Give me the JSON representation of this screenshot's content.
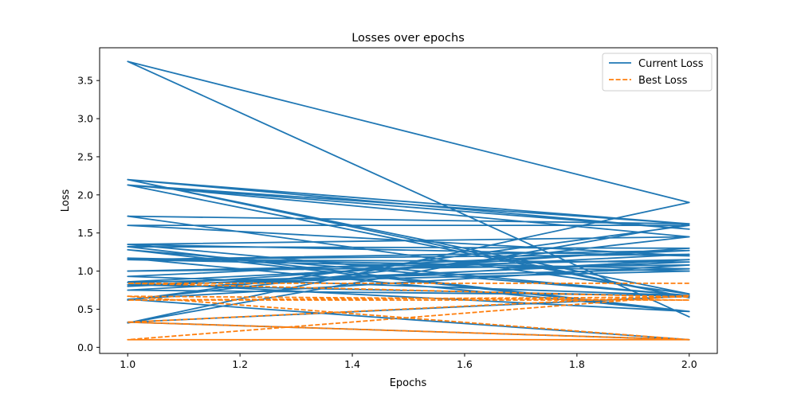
{
  "chart_data": {
    "type": "line",
    "title": "Losses over epochs",
    "xlabel": "Epochs",
    "ylabel": "Loss",
    "xlim": [
      0.95,
      2.05
    ],
    "ylim": [
      -0.08,
      3.93
    ],
    "x_ticks": [
      1.0,
      1.2,
      1.4,
      1.6,
      1.8,
      2.0
    ],
    "x_tick_labels": [
      "1.0",
      "1.2",
      "1.4",
      "1.6",
      "1.8",
      "2.0"
    ],
    "y_ticks": [
      0.0,
      0.5,
      1.0,
      1.5,
      2.0,
      2.5,
      3.0,
      3.5
    ],
    "y_tick_labels": [
      "0.0",
      "0.5",
      "1.0",
      "1.5",
      "2.0",
      "2.5",
      "3.0",
      "3.5"
    ],
    "grid": false,
    "legend_position": "top-right",
    "series": [
      {
        "name": "Current Loss",
        "color": "#1f77b4",
        "style": "solid",
        "x": [
          1.0,
          2.0,
          1.0,
          2.0,
          1.0,
          2.0,
          1.0,
          2.0,
          1.0,
          2.0,
          1.0,
          2.0,
          1.0,
          2.0,
          1.0,
          2.0,
          1.0,
          2.0,
          1.0,
          2.0,
          1.0,
          2.0,
          1.0,
          2.0,
          1.0,
          2.0,
          1.0,
          2.0,
          1.0,
          2.0,
          1.0,
          2.0,
          1.0,
          2.0,
          1.0,
          2.0,
          1.0,
          2.0,
          1.0,
          2.0,
          1.0,
          2.0,
          1.0,
          2.0,
          1.0,
          2.0,
          1.0,
          2.0,
          1.0,
          2.0,
          1.0
        ],
        "y": [
          3.75,
          0.4,
          3.75,
          1.9,
          0.32,
          1.62,
          1.72,
          0.7,
          2.2,
          1.62,
          2.13,
          0.65,
          2.2,
          1.55,
          2.13,
          1.45,
          1.35,
          1.2,
          1.6,
          1.6,
          0.62,
          1.45,
          1.35,
          0.68,
          0.93,
          1.27,
          1.15,
          1.12,
          0.8,
          1.3,
          1.32,
          0.47,
          1.17,
          1.03,
          0.85,
          0.47,
          1.28,
          0.68,
          0.75,
          1.15,
          1.0,
          1.08,
          0.63,
          0.1,
          0.33,
          0.67,
          0.82,
          1.0,
          1.15,
          1.22,
          0.86
        ]
      },
      {
        "name": "Best Loss",
        "color": "#ff7f0e",
        "style": "dashed",
        "x": [
          1.0,
          2.0,
          1.0,
          2.0,
          1.0,
          2.0,
          1.0,
          2.0,
          1.0,
          2.0,
          1.0,
          2.0,
          1.0,
          2.0
        ],
        "y": [
          0.33,
          0.1,
          0.33,
          0.68,
          0.1,
          0.1,
          0.1,
          0.1,
          0.67,
          0.62,
          0.62,
          0.66,
          0.84,
          0.84
        ]
      }
    ]
  }
}
